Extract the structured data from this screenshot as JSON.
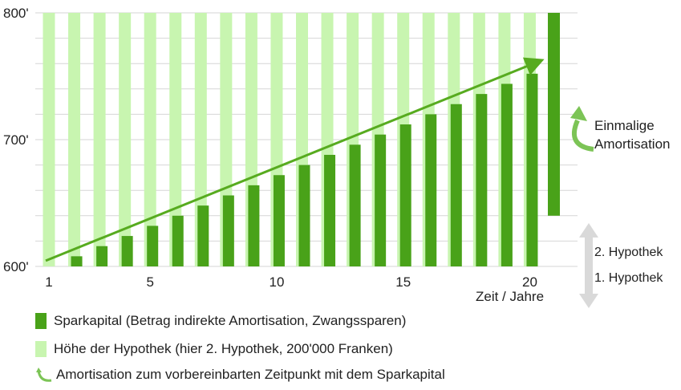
{
  "colors": {
    "savings": "#49a219",
    "mortgage": "#c8f5b0",
    "arrow": "#57ab1f",
    "curved_arrow": "#7cc456",
    "grey_arrow": "#d9d9d9",
    "grid": "#d6d6d6"
  },
  "chart_data": {
    "type": "bar",
    "x": [
      1,
      2,
      3,
      4,
      5,
      6,
      7,
      8,
      9,
      10,
      11,
      12,
      13,
      14,
      15,
      16,
      17,
      18,
      19,
      20,
      21
    ],
    "x_ticks": [
      1,
      5,
      10,
      15,
      20
    ],
    "x_tick_labels": [
      "1",
      "5",
      "10",
      "15",
      "20"
    ],
    "xlabel": "Zeit / Jahre",
    "ylim": [
      600,
      800
    ],
    "y_ticks": [
      600,
      700,
      800
    ],
    "y_tick_labels": [
      "600'",
      "700'",
      "800'"
    ],
    "y_minor_step": 20,
    "series": [
      {
        "name": "Sparkapital (Betrag indirekte Amortisation, Zwangssparen)",
        "values": [
          600,
          608,
          616,
          624,
          632,
          640,
          648,
          656,
          664,
          672,
          680,
          688,
          696,
          704,
          712,
          720,
          728,
          736,
          744,
          752,
          null
        ]
      },
      {
        "name": "Höhe der Hypothek (hier 2. Hypothek, 200'000 Franken)",
        "values": [
          800,
          800,
          800,
          800,
          800,
          800,
          800,
          800,
          800,
          800,
          800,
          800,
          800,
          800,
          800,
          800,
          800,
          800,
          800,
          800,
          null
        ]
      }
    ],
    "final_bar": {
      "x": 21,
      "from": 640,
      "to": 800
    },
    "trend_arrow": {
      "from": [
        1,
        602
      ],
      "to": [
        20.4,
        762
      ]
    },
    "annotations": {
      "amortisation": [
        "Einmalige",
        "Amortisation"
      ],
      "second_mortgage": "2. Hypothek",
      "first_mortgage": "1. Hypothek"
    },
    "legend": [
      {
        "icon": "bar-dark",
        "text": "Sparkapital (Betrag indirekte Amortisation, Zwangssparen)"
      },
      {
        "icon": "bar-light",
        "text": "Höhe der Hypothek (hier 2. Hypothek, 200'000 Franken)"
      },
      {
        "icon": "curved-arrow",
        "text": "Amortisation zum vorbereinbarten Zeitpunkt mit dem Sparkapital"
      }
    ]
  }
}
